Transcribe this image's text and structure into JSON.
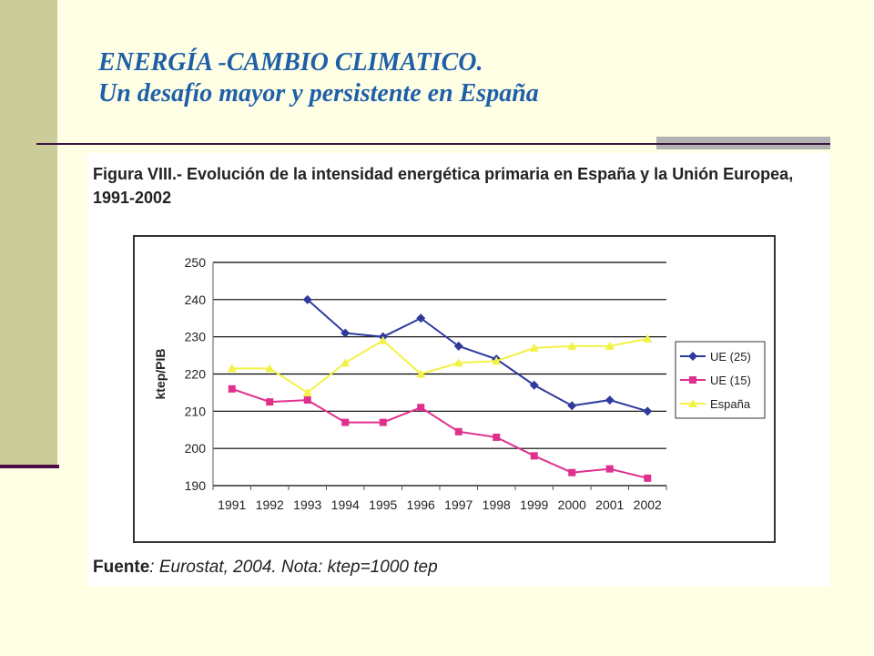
{
  "slide": {
    "title_line1": "ENERGÍA -CAMBIO CLIMATICO.",
    "title_line2": "Un desafío mayor y persistente en España"
  },
  "figure": {
    "caption": "Figura VIII.- Evolución de la intensidad energética primaria en España y la Unión Europea, 1991-2002",
    "source_label": "Fuente",
    "source_text": ": Eurostat, 2004. Nota: ktep=1000 tep"
  },
  "colors": {
    "background": "#FFFFE6",
    "band": "#CCCC99",
    "title": "#1F5FA8",
    "ue25": "#2E3A9C",
    "ue15": "#E0308E",
    "espana": "#F2F244"
  },
  "chart_data": {
    "type": "line",
    "title": "Evolución de la intensidad energética primaria en España y la Unión Europea, 1991-2002",
    "xlabel": "",
    "ylabel": "ktep/PIB",
    "categories": [
      "1991",
      "1992",
      "1993",
      "1994",
      "1995",
      "1996",
      "1997",
      "1998",
      "1999",
      "2000",
      "2001",
      "2002"
    ],
    "ylim": [
      190,
      250
    ],
    "yticks": [
      190,
      200,
      210,
      220,
      230,
      240,
      250
    ],
    "grid": true,
    "legend_position": "right",
    "series": [
      {
        "name": "UE (25)",
        "marker": "diamond",
        "color": "#2E3A9C",
        "values": [
          null,
          null,
          240,
          231,
          230,
          235,
          227.5,
          224,
          217,
          211.5,
          213,
          210
        ]
      },
      {
        "name": "UE (15)",
        "marker": "square",
        "color": "#E0308E",
        "values": [
          216,
          212.5,
          213,
          207,
          207,
          211,
          204.5,
          203,
          198,
          193.5,
          194.5,
          192
        ]
      },
      {
        "name": "España",
        "marker": "triangle",
        "color": "#F2F244",
        "values": [
          221.5,
          221.5,
          215,
          223,
          229,
          220,
          223,
          223.5,
          227,
          227.5,
          227.5,
          229.5
        ]
      }
    ]
  }
}
